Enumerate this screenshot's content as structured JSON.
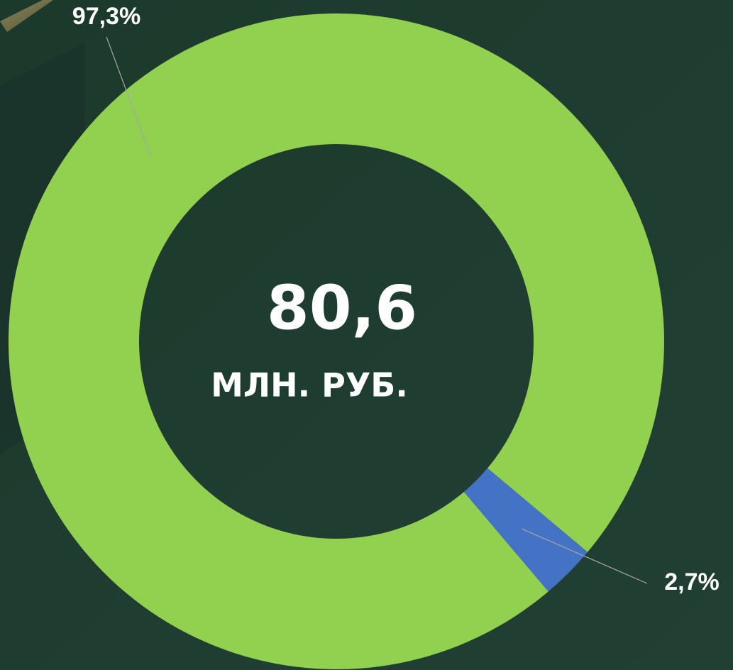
{
  "chart_data": {
    "type": "donut",
    "values": [
      97.3,
      2.7
    ],
    "value_labels": [
      "97,3%",
      "2,7%"
    ],
    "colors": [
      "#92d050",
      "#4472c4"
    ],
    "center_label": "80,6",
    "center_sublabel": "МЛН. РУБ."
  }
}
